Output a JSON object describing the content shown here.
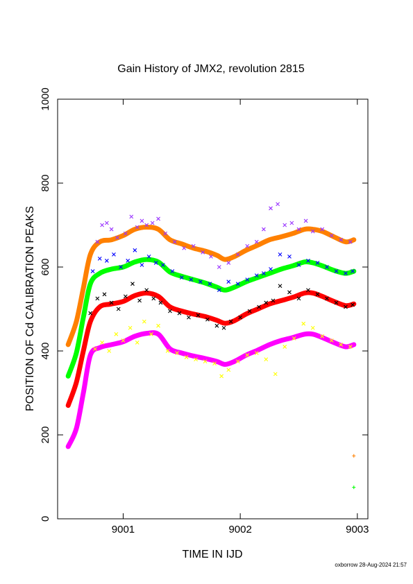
{
  "chart_data": {
    "type": "scatter",
    "title": "Gain History of JMX2, revolution 2815",
    "xlabel": "TIME IN IJD",
    "ylabel": "POSITION OF Cd CALIBRATION PEAKS",
    "footer": "oxborrow 28-Aug-2024 21:57",
    "xlim": [
      9000.44,
      9003.09
    ],
    "ylim": [
      0,
      1000
    ],
    "xticks": [
      9001,
      9002,
      9003
    ],
    "yticks": [
      0,
      200,
      400,
      600,
      800,
      1000
    ],
    "grid": false,
    "legend": "none",
    "series": [
      {
        "kind": "fit",
        "color": "#ff8000",
        "x": [
          9000.53,
          9000.6,
          9000.66,
          9000.72,
          9000.8,
          9000.9,
          9001.0,
          9001.1,
          9001.2,
          9001.3,
          9001.4,
          9001.5,
          9001.6,
          9001.7,
          9001.8,
          9001.87,
          9001.95,
          9002.05,
          9002.15,
          9002.25,
          9002.35,
          9002.45,
          9002.55,
          9002.62,
          9002.7,
          9002.8,
          9002.9,
          9002.97
        ],
        "y": [
          415,
          470,
          550,
          630,
          660,
          665,
          675,
          690,
          695,
          690,
          665,
          655,
          645,
          638,
          628,
          618,
          625,
          640,
          652,
          665,
          672,
          680,
          690,
          690,
          685,
          672,
          660,
          665
        ]
      },
      {
        "kind": "fit",
        "color": "#00ff00",
        "x": [
          9000.53,
          9000.6,
          9000.66,
          9000.72,
          9000.8,
          9000.9,
          9001.0,
          9001.1,
          9001.2,
          9001.3,
          9001.4,
          9001.5,
          9001.6,
          9001.7,
          9001.8,
          9001.87,
          9001.95,
          9002.05,
          9002.15,
          9002.25,
          9002.35,
          9002.45,
          9002.55,
          9002.62,
          9002.7,
          9002.8,
          9002.9,
          9002.97
        ],
        "y": [
          340,
          395,
          480,
          560,
          585,
          595,
          600,
          612,
          618,
          612,
          588,
          578,
          570,
          562,
          552,
          545,
          552,
          565,
          575,
          585,
          595,
          603,
          612,
          610,
          603,
          592,
          585,
          590
        ]
      },
      {
        "kind": "fit",
        "color": "#ff0000",
        "x": [
          9000.53,
          9000.6,
          9000.66,
          9000.72,
          9000.8,
          9000.9,
          9001.0,
          9001.1,
          9001.2,
          9001.3,
          9001.4,
          9001.5,
          9001.6,
          9001.7,
          9001.8,
          9001.87,
          9001.95,
          9002.05,
          9002.15,
          9002.25,
          9002.35,
          9002.45,
          9002.55,
          9002.62,
          9002.7,
          9002.8,
          9002.9,
          9002.97
        ],
        "y": [
          270,
          325,
          400,
          470,
          505,
          512,
          518,
          532,
          538,
          530,
          505,
          495,
          488,
          482,
          473,
          466,
          472,
          488,
          500,
          512,
          520,
          528,
          538,
          538,
          530,
          518,
          508,
          512
        ]
      },
      {
        "kind": "fit",
        "color": "#ff00ff",
        "x": [
          9000.53,
          9000.6,
          9000.66,
          9000.72,
          9000.8,
          9000.9,
          9001.0,
          9001.1,
          9001.2,
          9001.3,
          9001.4,
          9001.5,
          9001.6,
          9001.7,
          9001.8,
          9001.87,
          9001.95,
          9002.05,
          9002.15,
          9002.25,
          9002.35,
          9002.45,
          9002.55,
          9002.62,
          9002.7,
          9002.8,
          9002.9,
          9002.97
        ],
        "y": [
          172,
          215,
          300,
          390,
          408,
          415,
          422,
          435,
          442,
          440,
          405,
          395,
          388,
          382,
          375,
          368,
          375,
          390,
          402,
          415,
          425,
          432,
          440,
          440,
          432,
          420,
          410,
          415
        ]
      },
      {
        "kind": "points",
        "marker": "x",
        "color": "#9933ff",
        "x": [
          9000.78,
          9000.82,
          9000.86,
          9000.9,
          9000.95,
          9001.02,
          9001.07,
          9001.12,
          9001.16,
          9001.2,
          9001.25,
          9001.3,
          9001.36,
          9001.44,
          9001.52,
          9001.6,
          9001.68,
          9001.75,
          9001.82,
          9001.9,
          9001.98,
          9002.06,
          9002.14,
          9002.2,
          9002.26,
          9002.32,
          9002.38,
          9002.44,
          9002.5,
          9002.56,
          9002.62,
          9002.7,
          9002.78,
          9002.86,
          9002.94
        ],
        "y": [
          660,
          700,
          705,
          690,
          670,
          680,
          720,
          695,
          710,
          700,
          705,
          715,
          680,
          660,
          645,
          650,
          635,
          625,
          600,
          610,
          630,
          650,
          660,
          690,
          740,
          750,
          700,
          705,
          690,
          710,
          685,
          690,
          675,
          665,
          660
        ]
      },
      {
        "kind": "points",
        "marker": "x",
        "color": "#0000ff",
        "x": [
          9000.74,
          9000.8,
          9000.86,
          9000.92,
          9000.98,
          9001.04,
          9001.1,
          9001.16,
          9001.22,
          9001.28,
          9001.34,
          9001.42,
          9001.5,
          9001.58,
          9001.66,
          9001.74,
          9001.82,
          9001.9,
          9001.98,
          9002.06,
          9002.14,
          9002.2,
          9002.26,
          9002.34,
          9002.42,
          9002.5,
          9002.58,
          9002.66,
          9002.74,
          9002.82,
          9002.9,
          9002.96
        ],
        "y": [
          590,
          620,
          615,
          630,
          600,
          615,
          640,
          605,
          625,
          610,
          605,
          590,
          575,
          570,
          565,
          560,
          545,
          565,
          560,
          570,
          580,
          585,
          595,
          630,
          625,
          605,
          615,
          610,
          600,
          590,
          585,
          590
        ]
      },
      {
        "kind": "points",
        "marker": "x",
        "color": "#000000",
        "x": [
          9000.72,
          9000.78,
          9000.84,
          9000.9,
          9000.96,
          9001.02,
          9001.08,
          9001.14,
          9001.2,
          9001.26,
          9001.32,
          9001.4,
          9001.48,
          9001.56,
          9001.64,
          9001.72,
          9001.8,
          9001.86,
          9001.92,
          9002.0,
          9002.08,
          9002.16,
          9002.22,
          9002.28,
          9002.34,
          9002.42,
          9002.5,
          9002.58,
          9002.66,
          9002.74,
          9002.82,
          9002.9,
          9002.96
        ],
        "y": [
          490,
          525,
          535,
          515,
          500,
          530,
          560,
          520,
          545,
          525,
          515,
          495,
          490,
          480,
          485,
          475,
          460,
          455,
          470,
          480,
          495,
          505,
          515,
          520,
          555,
          540,
          525,
          545,
          535,
          525,
          515,
          505,
          510
        ]
      },
      {
        "kind": "points",
        "marker": "x",
        "color": "#ffff00",
        "x": [
          9000.76,
          9000.82,
          9000.88,
          9000.94,
          9001.0,
          9001.06,
          9001.12,
          9001.18,
          9001.24,
          9001.3,
          9001.38,
          9001.46,
          9001.54,
          9001.62,
          9001.7,
          9001.78,
          9001.84,
          9001.9,
          9001.98,
          9002.06,
          9002.14,
          9002.22,
          9002.3,
          9002.38,
          9002.46,
          9002.54,
          9002.62,
          9002.7,
          9002.78,
          9002.86,
          9002.94
        ],
        "y": [
          405,
          420,
          400,
          440,
          425,
          455,
          420,
          470,
          440,
          460,
          400,
          395,
          385,
          380,
          375,
          370,
          340,
          355,
          375,
          390,
          395,
          380,
          345,
          410,
          430,
          465,
          455,
          435,
          425,
          415,
          410
        ]
      },
      {
        "kind": "points",
        "marker": "+",
        "color": "#ff8000",
        "x": [
          9002.97
        ],
        "y": [
          150
        ]
      },
      {
        "kind": "points",
        "marker": "+",
        "color": "#00ff00",
        "x": [
          9002.97
        ],
        "y": [
          75
        ]
      }
    ]
  }
}
